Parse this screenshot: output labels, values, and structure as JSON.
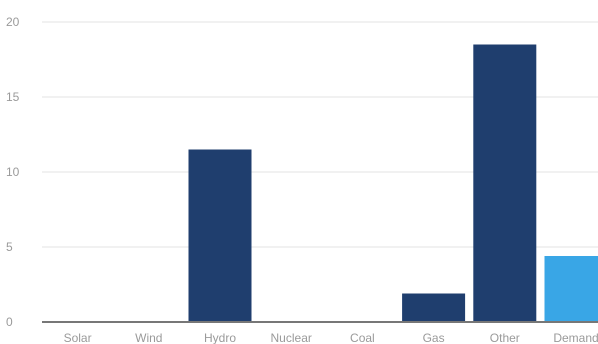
{
  "chart_data": {
    "type": "bar",
    "categories": [
      "Solar",
      "Wind",
      "Hydro",
      "Nuclear",
      "Coal",
      "Gas",
      "Other",
      "Demand"
    ],
    "values": [
      0,
      0,
      11.5,
      0,
      0,
      1.9,
      18.5,
      4.4
    ],
    "bar_colors": [
      "#1f3e6e",
      "#1f3e6e",
      "#1f3e6e",
      "#1f3e6e",
      "#1f3e6e",
      "#1f3e6e",
      "#1f3e6e",
      "#39a6e6"
    ],
    "ylim": [
      0,
      20
    ],
    "yticks": [
      0,
      5,
      10,
      15,
      20
    ],
    "grid": true,
    "colors": {
      "supply": "#1f3e6e",
      "demand": "#39a6e6",
      "grid": "#e3e3e3",
      "axis": "#777777",
      "tick_text": "#9a9a9a"
    }
  }
}
